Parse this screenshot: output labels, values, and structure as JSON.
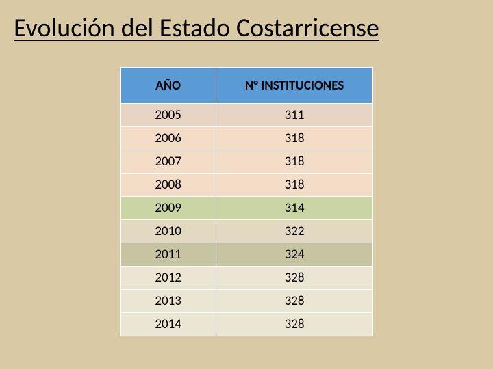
{
  "slide": {
    "background_color": "#d9c9a4",
    "title": "Evolución del Estado Costarricense",
    "title_color": "#000000",
    "title_fontsize": 38
  },
  "table": {
    "type": "table",
    "columns": [
      "AÑO",
      "N° INSTITUCIONES"
    ],
    "rows": [
      [
        "2005",
        "311"
      ],
      [
        "2006",
        "318"
      ],
      [
        "2007",
        "318"
      ],
      [
        "2008",
        "318"
      ],
      [
        "2009",
        "314"
      ],
      [
        "2010",
        "322"
      ],
      [
        "2011",
        "324"
      ],
      [
        "2012",
        "328"
      ],
      [
        "2013",
        "328"
      ],
      [
        "2014",
        "328"
      ]
    ],
    "header_bg": "#5b9bd5",
    "row_colors": [
      "#e8d4c4",
      "#f3ddc6",
      "#f3ddc6",
      "#f3ddc6",
      "#c9d5a3",
      "#e2d9c0",
      "#c7c4a2",
      "#ece5d4",
      "#ece5d4",
      "#ece5d4"
    ],
    "border_color": "#ffffff",
    "header_text_color": "#000000",
    "cell_text_color": "#000000",
    "cell_fontsize": 19,
    "header_fontsize": 19
  }
}
